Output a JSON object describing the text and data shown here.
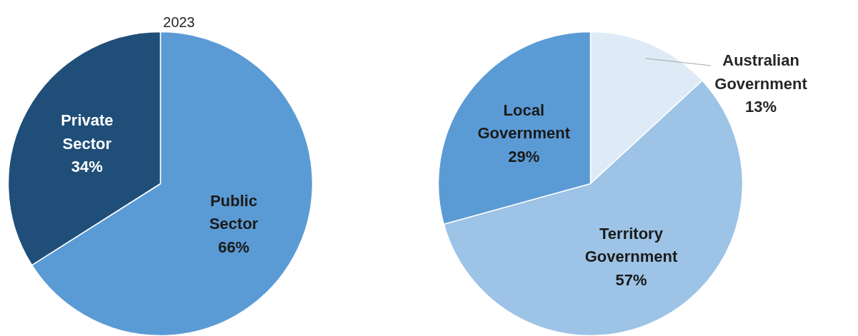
{
  "chart_data": [
    {
      "type": "pie",
      "title": "2023",
      "categories": [
        "Public Sector",
        "Private Sector"
      ],
      "values": [
        66,
        34
      ],
      "colors": [
        "#5b9bd5",
        "#1f4e79"
      ],
      "value_labels": [
        "66%",
        "34%"
      ]
    },
    {
      "type": "pie",
      "categories": [
        "Australian Government",
        "Territory Government",
        "Local Government"
      ],
      "values": [
        13,
        57,
        29
      ],
      "colors": [
        "#deebf7",
        "#9dc3e6",
        "#5b9bd5"
      ],
      "value_labels": [
        "13%",
        "57%",
        "29%"
      ]
    }
  ]
}
